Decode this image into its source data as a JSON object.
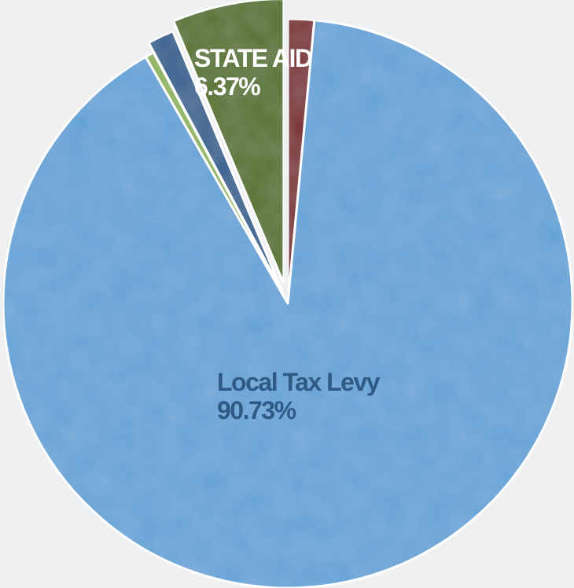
{
  "chart_data": {
    "type": "pie",
    "slices": [
      {
        "name": "",
        "value": 1.5,
        "color": "#7a2a2e",
        "label": "",
        "pct_label": ""
      },
      {
        "name": "Local Tax Levy",
        "value": 90.73,
        "color": "#65a3d7",
        "label": "Local Tax Levy",
        "pct_label": "90.73%",
        "label_color": "#2f5a86"
      },
      {
        "name": "",
        "value": 0.5,
        "color": "#8db35a",
        "label": "",
        "pct_label": ""
      },
      {
        "name": "",
        "value": 1.5,
        "color": "#2d5f8e",
        "label": "",
        "pct_label": ""
      },
      {
        "name": "STATE AID",
        "value": 6.37,
        "color": "#557127",
        "label": "STATE AID",
        "pct_label": "6.37%",
        "label_color": "#ffffff"
      }
    ],
    "start_angle_deg": 0,
    "direction": "clockwise"
  }
}
